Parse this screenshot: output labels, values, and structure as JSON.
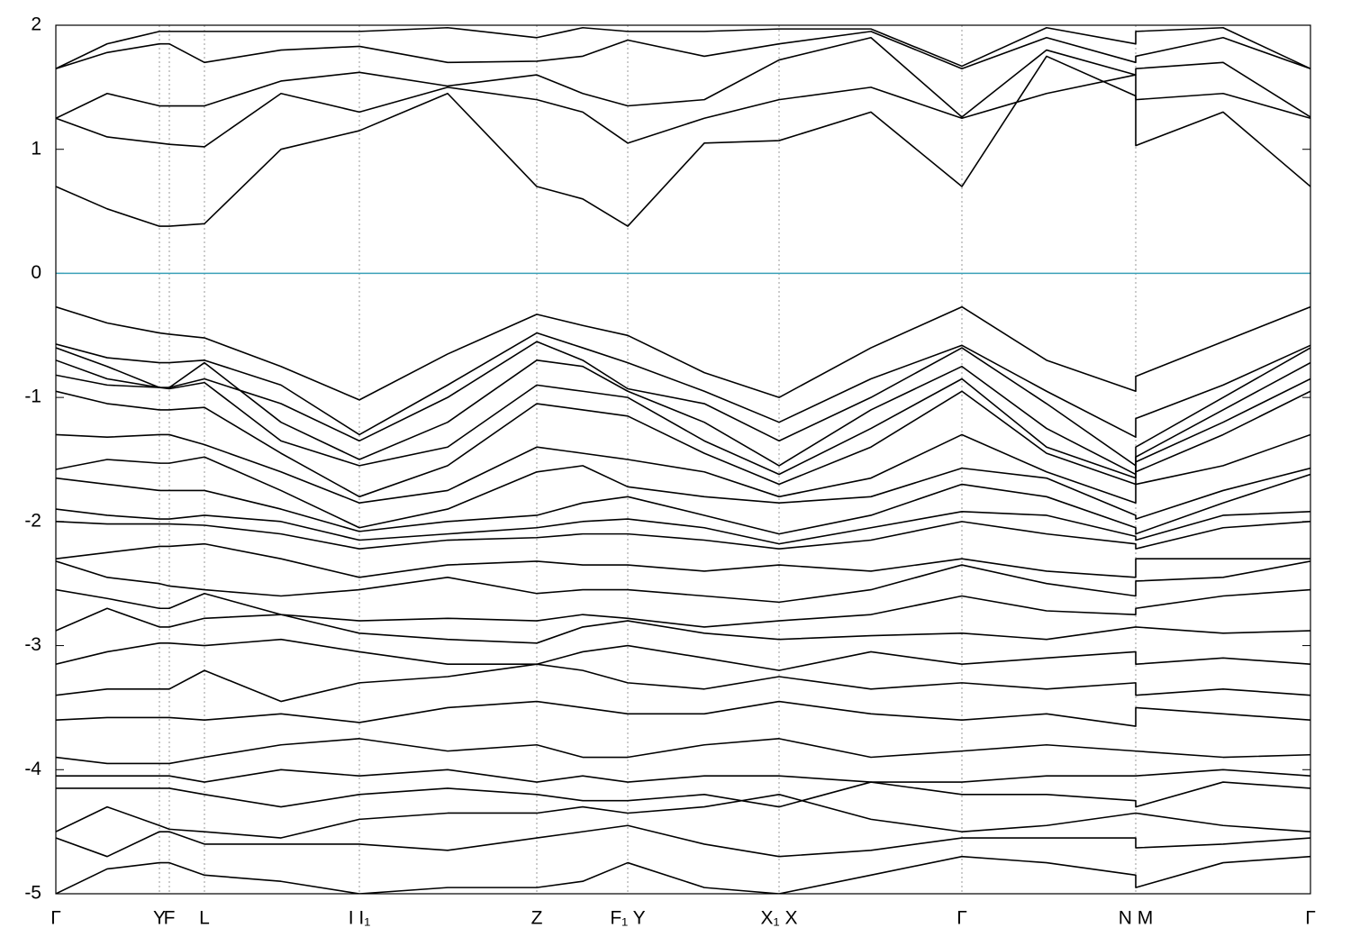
{
  "chart_data": {
    "type": "line",
    "xlim": [
      0,
      1393
    ],
    "ylim": [
      -5,
      2
    ],
    "xticks": [
      {
        "value": 0,
        "label": "Γ"
      },
      {
        "value": 115,
        "label": "Y"
      },
      {
        "value": 126,
        "label": "F"
      },
      {
        "value": 165,
        "label": "L"
      },
      {
        "value": 337,
        "label": "I  I₁"
      },
      {
        "value": 534,
        "label": "Z"
      },
      {
        "value": 635,
        "label": "F₁ Y"
      },
      {
        "value": 803,
        "label": "X₁ X"
      },
      {
        "value": 1006,
        "label": "Γ"
      },
      {
        "value": 1199,
        "label": "N M"
      },
      {
        "value": 1393,
        "label": "Γ"
      }
    ],
    "yticks": [
      2,
      1,
      0,
      -1,
      -2,
      -3,
      -4,
      -5
    ],
    "xgrid": true,
    "grid_color": "#999999",
    "line_color": "#000000",
    "zero_line": true,
    "zero_line_color": "#3aa0b8",
    "x": [
      0,
      57,
      115,
      126,
      165,
      250,
      337,
      435,
      534,
      585,
      635,
      720,
      803,
      905,
      1006,
      1100,
      1199,
      1199,
      1296,
      1393
    ],
    "series": [
      {
        "values": [
          0.7,
          0.52,
          0.38,
          0.38,
          0.4,
          1.0,
          1.15,
          1.45,
          0.7,
          0.6,
          0.38,
          1.05,
          1.07,
          1.3,
          0.7,
          1.75,
          1.43,
          1.03,
          1.3,
          0.7
        ]
      },
      {
        "values": [
          1.25,
          1.1,
          1.05,
          1.04,
          1.02,
          1.45,
          1.3,
          1.5,
          1.4,
          1.3,
          1.05,
          1.25,
          1.4,
          1.5,
          1.25,
          1.45,
          1.6,
          1.4,
          1.45,
          1.25
        ]
      },
      {
        "values": [
          1.25,
          1.45,
          1.35,
          1.35,
          1.35,
          1.55,
          1.62,
          1.51,
          1.6,
          1.45,
          1.35,
          1.4,
          1.72,
          1.9,
          1.26,
          1.8,
          1.6,
          1.65,
          1.7,
          1.26
        ]
      },
      {
        "values": [
          1.65,
          1.78,
          1.85,
          1.85,
          1.7,
          1.8,
          1.83,
          1.7,
          1.71,
          1.75,
          1.88,
          1.75,
          1.85,
          1.95,
          1.65,
          1.9,
          1.7,
          1.75,
          1.9,
          1.65
        ]
      },
      {
        "values": [
          1.65,
          1.85,
          1.95,
          1.95,
          1.95,
          1.95,
          1.95,
          1.98,
          1.9,
          1.98,
          1.95,
          1.95,
          1.97,
          1.97,
          1.67,
          1.98,
          1.85,
          1.95,
          1.98,
          1.65
        ]
      },
      {
        "values": [
          -0.27,
          -0.4,
          -0.48,
          -0.49,
          -0.52,
          -0.75,
          -1.02,
          -0.65,
          -0.33,
          -0.42,
          -0.5,
          -0.8,
          -1.0,
          -0.6,
          -0.27,
          -0.7,
          -0.95,
          -0.83,
          -0.55,
          -0.27
        ]
      },
      {
        "values": [
          -0.57,
          -0.68,
          -0.72,
          -0.72,
          -0.7,
          -0.9,
          -1.3,
          -0.9,
          -0.48,
          -0.6,
          -0.72,
          -0.95,
          -1.2,
          -0.85,
          -0.58,
          -0.95,
          -1.32,
          -1.17,
          -0.9,
          -0.58
        ]
      },
      {
        "values": [
          -0.6,
          -0.75,
          -0.92,
          -0.92,
          -0.85,
          -1.05,
          -1.35,
          -1.0,
          -0.55,
          -0.7,
          -0.93,
          -1.05,
          -1.35,
          -1.0,
          -0.6,
          -1.05,
          -1.55,
          -1.4,
          -1.0,
          -0.6
        ]
      },
      {
        "values": [
          -0.7,
          -0.85,
          -0.92,
          -0.92,
          -0.72,
          -1.2,
          -1.5,
          -1.2,
          -0.7,
          -0.75,
          -0.95,
          -1.2,
          -1.55,
          -1.1,
          -0.75,
          -1.25,
          -1.62,
          -1.48,
          -1.1,
          -0.72
        ]
      },
      {
        "values": [
          -0.82,
          -0.9,
          -0.92,
          -0.93,
          -0.88,
          -1.35,
          -1.55,
          -1.4,
          -0.9,
          -0.95,
          -1.0,
          -1.35,
          -1.62,
          -1.25,
          -0.85,
          -1.4,
          -1.65,
          -1.52,
          -1.2,
          -0.85
        ]
      },
      {
        "values": [
          -0.95,
          -1.05,
          -1.1,
          -1.1,
          -1.08,
          -1.45,
          -1.8,
          -1.55,
          -1.05,
          -1.1,
          -1.15,
          -1.45,
          -1.7,
          -1.4,
          -0.95,
          -1.45,
          -1.7,
          -1.6,
          -1.3,
          -0.95
        ]
      },
      {
        "values": [
          -1.3,
          -1.32,
          -1.3,
          -1.3,
          -1.38,
          -1.6,
          -1.85,
          -1.75,
          -1.4,
          -1.45,
          -1.5,
          -1.6,
          -1.8,
          -1.65,
          -1.3,
          -1.6,
          -1.85,
          -1.7,
          -1.55,
          -1.3
        ]
      },
      {
        "values": [
          -1.58,
          -1.5,
          -1.53,
          -1.53,
          -1.48,
          -1.75,
          -2.05,
          -1.9,
          -1.6,
          -1.55,
          -1.72,
          -1.8,
          -1.85,
          -1.8,
          -1.57,
          -1.65,
          -1.95,
          -1.98,
          -1.75,
          -1.57
        ]
      },
      {
        "values": [
          -1.65,
          -1.7,
          -1.75,
          -1.75,
          -1.75,
          -1.9,
          -2.08,
          -2.0,
          -1.95,
          -1.85,
          -1.8,
          -1.95,
          -2.1,
          -1.95,
          -1.7,
          -1.8,
          -2.05,
          -2.1,
          -1.85,
          -1.62
        ]
      },
      {
        "values": [
          -1.9,
          -1.95,
          -1.98,
          -1.98,
          -1.95,
          -2.0,
          -2.15,
          -2.1,
          -2.05,
          -2.0,
          -1.98,
          -2.05,
          -2.18,
          -2.05,
          -1.92,
          -1.95,
          -2.12,
          -2.15,
          -1.95,
          -1.92
        ]
      },
      {
        "values": [
          -2.0,
          -2.02,
          -2.02,
          -2.02,
          -2.03,
          -2.1,
          -2.22,
          -2.15,
          -2.13,
          -2.1,
          -2.1,
          -2.15,
          -2.22,
          -2.15,
          -2.0,
          -2.1,
          -2.18,
          -2.22,
          -2.05,
          -2.0
        ]
      },
      {
        "values": [
          -2.3,
          -2.25,
          -2.2,
          -2.2,
          -2.18,
          -2.3,
          -2.45,
          -2.35,
          -2.32,
          -2.35,
          -2.35,
          -2.4,
          -2.35,
          -2.4,
          -2.3,
          -2.4,
          -2.45,
          -2.3,
          -2.3,
          -2.3
        ]
      },
      {
        "values": [
          -2.32,
          -2.45,
          -2.5,
          -2.52,
          -2.55,
          -2.6,
          -2.55,
          -2.45,
          -2.58,
          -2.55,
          -2.55,
          -2.6,
          -2.65,
          -2.55,
          -2.35,
          -2.5,
          -2.6,
          -2.48,
          -2.45,
          -2.32
        ]
      },
      {
        "values": [
          -2.55,
          -2.62,
          -2.7,
          -2.7,
          -2.58,
          -2.75,
          -2.8,
          -2.78,
          -2.8,
          -2.75,
          -2.78,
          -2.85,
          -2.8,
          -2.75,
          -2.6,
          -2.72,
          -2.75,
          -2.7,
          -2.6,
          -2.55
        ]
      },
      {
        "values": [
          -2.88,
          -2.7,
          -2.85,
          -2.85,
          -2.78,
          -2.75,
          -2.9,
          -2.95,
          -2.98,
          -2.85,
          -2.8,
          -2.9,
          -2.95,
          -2.92,
          -2.9,
          -2.95,
          -2.85,
          -2.85,
          -2.9,
          -2.88
        ]
      },
      {
        "values": [
          -3.15,
          -3.05,
          -2.98,
          -2.98,
          -3.0,
          -2.95,
          -3.05,
          -3.15,
          -3.15,
          -3.05,
          -3.0,
          -3.1,
          -3.2,
          -3.05,
          -3.15,
          -3.1,
          -3.05,
          -3.15,
          -3.1,
          -3.15
        ]
      },
      {
        "values": [
          -3.4,
          -3.35,
          -3.35,
          -3.35,
          -3.2,
          -3.45,
          -3.3,
          -3.25,
          -3.15,
          -3.2,
          -3.3,
          -3.35,
          -3.25,
          -3.35,
          -3.3,
          -3.35,
          -3.3,
          -3.4,
          -3.35,
          -3.4
        ]
      },
      {
        "values": [
          -3.6,
          -3.58,
          -3.58,
          -3.58,
          -3.6,
          -3.55,
          -3.62,
          -3.5,
          -3.45,
          -3.5,
          -3.55,
          -3.55,
          -3.45,
          -3.55,
          -3.6,
          -3.55,
          -3.65,
          -3.5,
          -3.55,
          -3.6
        ]
      },
      {
        "values": [
          -3.9,
          -3.95,
          -3.95,
          -3.95,
          -3.9,
          -3.8,
          -3.75,
          -3.85,
          -3.8,
          -3.9,
          -3.9,
          -3.8,
          -3.75,
          -3.9,
          -3.85,
          -3.8,
          -3.85,
          -3.85,
          -3.9,
          -3.88
        ]
      },
      {
        "values": [
          -4.05,
          -4.05,
          -4.05,
          -4.05,
          -4.1,
          -4.0,
          -4.05,
          -4.0,
          -4.1,
          -4.05,
          -4.1,
          -4.05,
          -4.05,
          -4.1,
          -4.1,
          -4.05,
          -4.05,
          -4.05,
          -4.0,
          -4.05
        ]
      },
      {
        "values": [
          -4.15,
          -4.15,
          -4.15,
          -4.15,
          -4.2,
          -4.3,
          -4.2,
          -4.15,
          -4.2,
          -4.25,
          -4.25,
          -4.2,
          -4.3,
          -4.1,
          -4.2,
          -4.2,
          -4.25,
          -4.3,
          -4.1,
          -4.15
        ]
      },
      {
        "values": [
          -4.5,
          -4.3,
          -4.45,
          -4.48,
          -4.5,
          -4.55,
          -4.4,
          -4.35,
          -4.35,
          -4.3,
          -4.35,
          -4.3,
          -4.2,
          -4.4,
          -4.5,
          -4.45,
          -4.35,
          -4.35,
          -4.45,
          -4.5
        ]
      },
      {
        "values": [
          -4.55,
          -4.7,
          -4.5,
          -4.5,
          -4.6,
          -4.6,
          -4.6,
          -4.65,
          -4.55,
          -4.5,
          -4.45,
          -4.6,
          -4.7,
          -4.65,
          -4.55,
          -4.55,
          -4.55,
          -4.63,
          -4.6,
          -4.55
        ]
      },
      {
        "values": [
          -5.0,
          -4.8,
          -4.75,
          -4.75,
          -4.85,
          -4.9,
          -5.0,
          -4.95,
          -4.95,
          -4.9,
          -4.75,
          -4.95,
          -5.0,
          -4.85,
          -4.7,
          -4.75,
          -4.85,
          -4.95,
          -4.75,
          -4.7
        ]
      }
    ]
  }
}
